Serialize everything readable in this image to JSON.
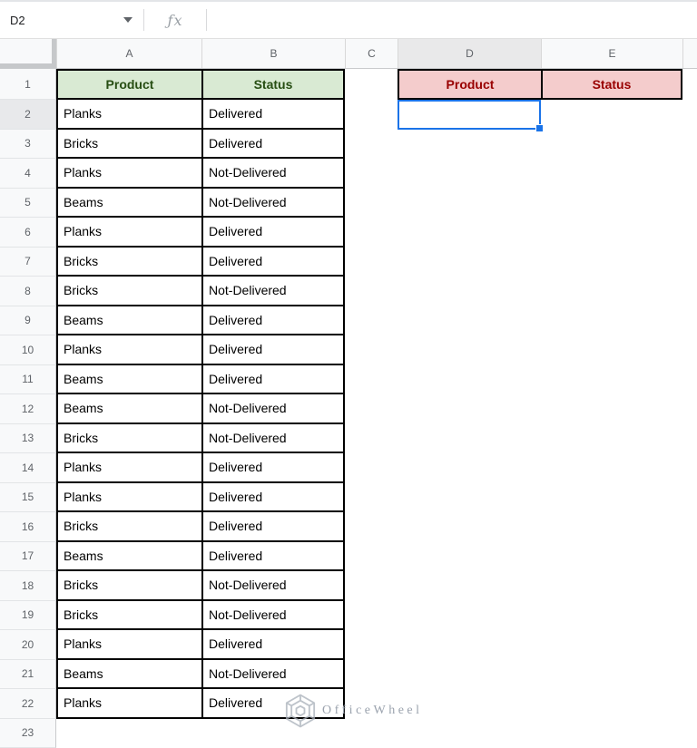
{
  "name_box": {
    "value": "D2"
  },
  "formula_bar": {
    "fx_label": "ƒx",
    "value": ""
  },
  "grid": {
    "column_letters": [
      "A",
      "B",
      "C",
      "D",
      "E"
    ],
    "row_numbers": [
      "1",
      "2",
      "3",
      "4",
      "5",
      "6",
      "7",
      "8",
      "9",
      "10",
      "11",
      "12",
      "13",
      "14",
      "15",
      "16",
      "17",
      "18",
      "19",
      "20",
      "21",
      "22",
      "23"
    ],
    "selection": {
      "cell": "D2",
      "column": "D",
      "row": 2
    }
  },
  "sheet": {
    "left_table": {
      "header": [
        "Product",
        "Status"
      ],
      "rows": [
        [
          "Planks",
          "Delivered"
        ],
        [
          "Bricks",
          "Delivered"
        ],
        [
          "Planks",
          "Not-Delivered"
        ],
        [
          "Beams",
          "Not-Delivered"
        ],
        [
          "Planks",
          "Delivered"
        ],
        [
          "Bricks",
          "Delivered"
        ],
        [
          "Bricks",
          "Not-Delivered"
        ],
        [
          "Beams",
          "Delivered"
        ],
        [
          "Planks",
          "Delivered"
        ],
        [
          "Beams",
          "Delivered"
        ],
        [
          "Beams",
          "Not-Delivered"
        ],
        [
          "Bricks",
          "Not-Delivered"
        ],
        [
          "Planks",
          "Delivered"
        ],
        [
          "Planks",
          "Delivered"
        ],
        [
          "Bricks",
          "Delivered"
        ],
        [
          "Beams",
          "Delivered"
        ],
        [
          "Bricks",
          "Not-Delivered"
        ],
        [
          "Bricks",
          "Not-Delivered"
        ],
        [
          "Planks",
          "Delivered"
        ],
        [
          "Beams",
          "Not-Delivered"
        ],
        [
          "Planks",
          "Delivered"
        ]
      ]
    },
    "right_table": {
      "header": [
        "Product",
        "Status"
      ]
    }
  },
  "colors": {
    "left_header_bg": "#d9ead3",
    "left_header_text": "#274e13",
    "right_header_bg": "#f4cccc",
    "right_header_text": "#990000",
    "selection": "#1a73e8"
  },
  "watermark": {
    "text": "OfficeWheel",
    "icon": "officewheel-hexagon-logo"
  }
}
